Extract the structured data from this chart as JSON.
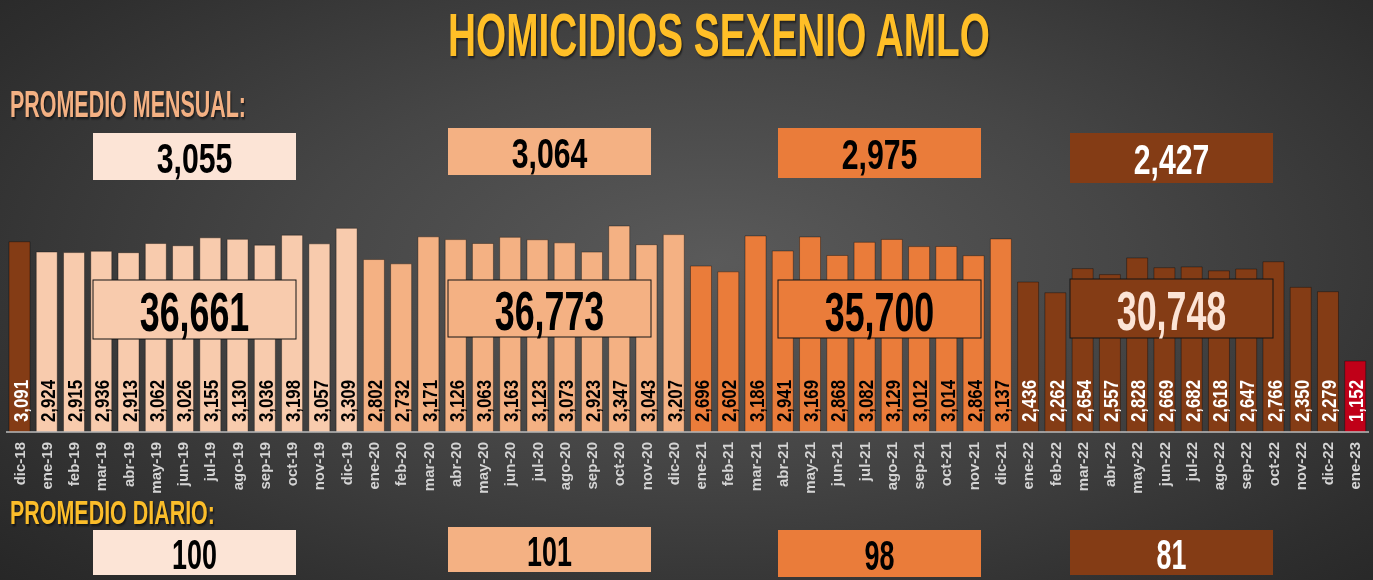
{
  "chart_data": {
    "type": "bar",
    "title": "HOMICIDIOS SEXENIO AMLO",
    "categories": [
      "dic-18",
      "ene-19",
      "feb-19",
      "mar-19",
      "abr-19",
      "may-19",
      "jun-19",
      "jul-19",
      "ago-19",
      "sep-19",
      "oct-19",
      "nov-19",
      "dic-19",
      "ene-20",
      "feb-20",
      "mar-20",
      "abr-20",
      "may-20",
      "jun-20",
      "jul-20",
      "ago-20",
      "sep-20",
      "oct-20",
      "nov-20",
      "dic-20",
      "ene-21",
      "feb-21",
      "mar-21",
      "abr-21",
      "may-21",
      "jun-21",
      "jul-21",
      "ago-21",
      "sep-21",
      "oct-21",
      "nov-21",
      "dic-21",
      "ene-22",
      "feb-22",
      "mar-22",
      "abr-22",
      "may-22",
      "jun-22",
      "jul-22",
      "ago-22",
      "sep-22",
      "oct-22",
      "nov-22",
      "dic-22",
      "ene-23"
    ],
    "values": [
      3091,
      2924,
      2915,
      2936,
      2913,
      3062,
      3026,
      3155,
      3130,
      3036,
      3198,
      3057,
      3309,
      2802,
      2732,
      3171,
      3126,
      3063,
      3163,
      3123,
      3073,
      2923,
      3347,
      3043,
      3207,
      2696,
      2602,
      3186,
      2941,
      3169,
      2868,
      3082,
      3129,
      3012,
      3014,
      2864,
      3137,
      2436,
      2262,
      2654,
      2557,
      2828,
      2669,
      2682,
      2618,
      2647,
      2766,
      2350,
      2279,
      1152
    ],
    "value_labels": [
      "3,091",
      "2,924",
      "2,915",
      "2,936",
      "2,913",
      "3,062",
      "3,026",
      "3,155",
      "3,130",
      "3,036",
      "3,198",
      "3,057",
      "3,309",
      "2,802",
      "2,732",
      "3,171",
      "3,126",
      "3,063",
      "3,163",
      "3,123",
      "3,073",
      "2,923",
      "3,347",
      "3,043",
      "3,207",
      "2,696",
      "2,602",
      "3,186",
      "2,941",
      "3,169",
      "2,868",
      "3,082",
      "3,129",
      "3,012",
      "3,014",
      "2,864",
      "3,137",
      "2,436",
      "2,262",
      "2,654",
      "2,557",
      "2,828",
      "2,669",
      "2,682",
      "2,618",
      "2,647",
      "2,766",
      "2,350",
      "2,279",
      "1,152"
    ],
    "colors": [
      "#843c15",
      "#f8cbad",
      "#f8cbad",
      "#f8cbad",
      "#f8cbad",
      "#f8cbad",
      "#f8cbad",
      "#f8cbad",
      "#f8cbad",
      "#f8cbad",
      "#f8cbad",
      "#f8cbad",
      "#f8cbad",
      "#f4b183",
      "#f4b183",
      "#f4b183",
      "#f4b183",
      "#f4b183",
      "#f4b183",
      "#f4b183",
      "#f4b183",
      "#f4b183",
      "#f4b183",
      "#f4b183",
      "#f4b183",
      "#ea7c3a",
      "#ea7c3a",
      "#ea7c3a",
      "#ea7c3a",
      "#ea7c3a",
      "#ea7c3a",
      "#ea7c3a",
      "#ea7c3a",
      "#ea7c3a",
      "#ea7c3a",
      "#ea7c3a",
      "#ea7c3a",
      "#843c15",
      "#843c15",
      "#843c15",
      "#843c15",
      "#843c15",
      "#843c15",
      "#843c15",
      "#843c15",
      "#843c15",
      "#843c15",
      "#843c15",
      "#843c15",
      "#c00018"
    ],
    "annotations": [
      "PROMEDIO MENSUAL:",
      "3,055",
      "3,064",
      "2,975",
      "2,427",
      "36,661",
      "36,773",
      "35,700",
      "30,748",
      "PROMEDIO DIARIO:",
      "100",
      "101",
      "98",
      "81"
    ]
  }
}
